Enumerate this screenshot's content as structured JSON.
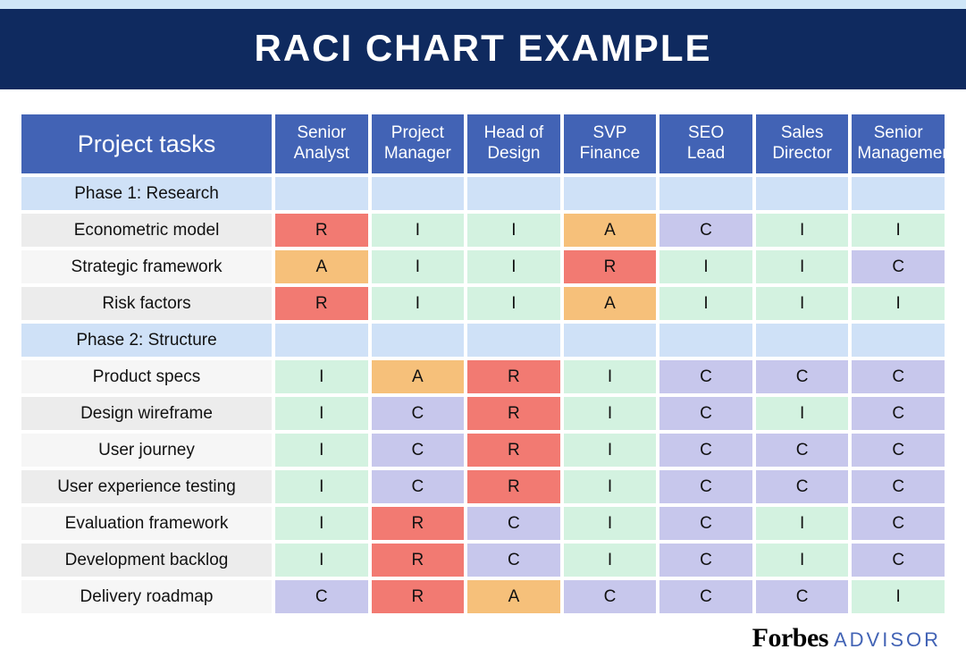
{
  "title": "RACI CHART EXAMPLE",
  "colors": {
    "title_bg": "#0f2a5f",
    "top_strip": "#cfe6f7",
    "header_bg": "#4263b5",
    "header_text": "#ffffff",
    "phase_bg": "#cfe1f7",
    "cell_R": "#f27a72",
    "cell_A": "#f6c07a",
    "cell_C": "#c7c7ec",
    "cell_I": "#d3f2e0",
    "task_bg_alt": "#ececec",
    "task_bg": "#f6f6f6"
  },
  "typography": {
    "title_fontsize": 42,
    "header_tasks_fontsize": 27,
    "header_role_fontsize": 19,
    "cell_fontsize": 19
  },
  "columns": {
    "tasks_header": "Project tasks",
    "roles": [
      "Senior Analyst",
      "Project Manager",
      "Head of Design",
      "SVP Finance",
      "SEO Lead",
      "Sales Director",
      "Senior Management"
    ]
  },
  "rows": [
    {
      "type": "phase",
      "label": "Phase 1: Research"
    },
    {
      "type": "task",
      "label": "Econometric model",
      "values": [
        "R",
        "I",
        "I",
        "A",
        "C",
        "I",
        "I"
      ]
    },
    {
      "type": "task",
      "label": "Strategic framework",
      "values": [
        "A",
        "I",
        "I",
        "R",
        "I",
        "I",
        "C"
      ]
    },
    {
      "type": "task",
      "label": "Risk factors",
      "values": [
        "R",
        "I",
        "I",
        "A",
        "I",
        "I",
        "I"
      ]
    },
    {
      "type": "phase",
      "label": "Phase 2: Structure"
    },
    {
      "type": "task",
      "label": "Product specs",
      "values": [
        "I",
        "A",
        "R",
        "I",
        "C",
        "C",
        "C"
      ]
    },
    {
      "type": "task",
      "label": "Design wireframe",
      "values": [
        "I",
        "C",
        "R",
        "I",
        "C",
        "I",
        "C"
      ]
    },
    {
      "type": "task",
      "label": "User journey",
      "values": [
        "I",
        "C",
        "R",
        "I",
        "C",
        "C",
        "C"
      ]
    },
    {
      "type": "task",
      "label": "User experience testing",
      "values": [
        "I",
        "C",
        "R",
        "I",
        "C",
        "C",
        "C"
      ]
    },
    {
      "type": "task",
      "label": "Evaluation framework",
      "values": [
        "I",
        "R",
        "C",
        "I",
        "C",
        "I",
        "C"
      ]
    },
    {
      "type": "task",
      "label": "Development backlog",
      "values": [
        "I",
        "R",
        "C",
        "I",
        "C",
        "I",
        "C"
      ]
    },
    {
      "type": "task",
      "label": "Delivery roadmap",
      "values": [
        "C",
        "R",
        "A",
        "C",
        "C",
        "C",
        "I"
      ]
    }
  ],
  "footer": {
    "brand": "Forbes",
    "sub": "ADVISOR"
  }
}
